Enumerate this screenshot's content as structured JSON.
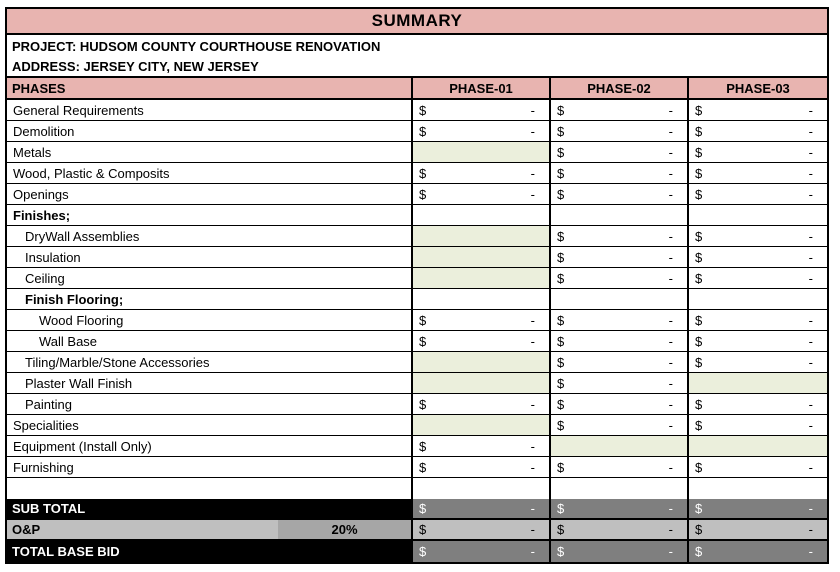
{
  "header": {
    "title": "SUMMARY",
    "project": "PROJECT: HUDSOM COUNTY COURTHOUSE RENOVATION",
    "address": "ADDRESS: JERSEY CITY, NEW JERSEY"
  },
  "table": {
    "phases_label": "PHASES",
    "phase_columns": [
      "PHASE-01",
      "PHASE-02",
      "PHASE-03"
    ],
    "currency_symbol": "$",
    "empty_amount": "-",
    "rows": [
      {
        "label": "General Requirements",
        "indent": 0,
        "bold": false,
        "cells": [
          "money",
          "money",
          "money"
        ]
      },
      {
        "label": "Demolition",
        "indent": 0,
        "bold": false,
        "cells": [
          "money",
          "money",
          "money"
        ]
      },
      {
        "label": "Metals",
        "indent": 0,
        "bold": false,
        "cells": [
          "green",
          "money",
          "money"
        ]
      },
      {
        "label": "Wood, Plastic & Composits",
        "indent": 0,
        "bold": false,
        "cells": [
          "money",
          "money",
          "money"
        ]
      },
      {
        "label": "Openings",
        "indent": 0,
        "bold": false,
        "cells": [
          "money",
          "money",
          "money"
        ]
      },
      {
        "label": "Finishes;",
        "indent": 0,
        "bold": true,
        "cells": [
          "blank",
          "blank",
          "blank"
        ]
      },
      {
        "label": "DryWall Assemblies",
        "indent": 1,
        "bold": false,
        "cells": [
          "green",
          "money",
          "money"
        ]
      },
      {
        "label": "Insulation",
        "indent": 1,
        "bold": false,
        "cells": [
          "green",
          "money",
          "money"
        ]
      },
      {
        "label": "Ceiling",
        "indent": 1,
        "bold": false,
        "cells": [
          "green",
          "money",
          "money"
        ]
      },
      {
        "label": "Finish Flooring;",
        "indent": 1,
        "bold": true,
        "cells": [
          "blank",
          "blank",
          "blank"
        ]
      },
      {
        "label": "Wood Flooring",
        "indent": 2,
        "bold": false,
        "cells": [
          "money",
          "money",
          "money"
        ]
      },
      {
        "label": "Wall Base",
        "indent": 2,
        "bold": false,
        "cells": [
          "money",
          "money",
          "money"
        ]
      },
      {
        "label": "Tiling/Marble/Stone Accessories",
        "indent": 1,
        "bold": false,
        "cells": [
          "green",
          "money",
          "money"
        ]
      },
      {
        "label": "Plaster Wall Finish",
        "indent": 1,
        "bold": false,
        "cells": [
          "green",
          "money",
          "green"
        ]
      },
      {
        "label": "Painting",
        "indent": 1,
        "bold": false,
        "cells": [
          "money",
          "money",
          "money"
        ]
      },
      {
        "label": "Specialities",
        "indent": 0,
        "bold": false,
        "cells": [
          "green",
          "money",
          "money"
        ]
      },
      {
        "label": "Equipment (Install Only)",
        "indent": 0,
        "bold": false,
        "cells": [
          "money",
          "green",
          "green"
        ]
      },
      {
        "label": "Furnishing",
        "indent": 0,
        "bold": false,
        "cells": [
          "money",
          "money",
          "money"
        ]
      },
      {
        "label": "",
        "indent": 0,
        "bold": false,
        "cells": [
          "blank",
          "blank",
          "blank"
        ]
      }
    ]
  },
  "totals": {
    "rows": [
      {
        "label": "SUB TOTAL",
        "style": "dark",
        "percent": null,
        "cells": [
          "money",
          "money",
          "money"
        ]
      },
      {
        "label": "O&P",
        "style": "light",
        "percent": "20%",
        "cells": [
          "money",
          "money",
          "money"
        ]
      },
      {
        "label": "TOTAL BASE BID",
        "style": "dark",
        "percent": null,
        "cells": [
          "money",
          "money",
          "money"
        ]
      }
    ]
  },
  "colors": {
    "header_pink": "#e8b4b0",
    "empty_cell_green": "#ebefdc",
    "subtotal_gray": "#7f7f7f",
    "op_row_gray": "#bfbfbf",
    "op_percent_gray": "#a6a6a6",
    "band_black": "#000000"
  }
}
